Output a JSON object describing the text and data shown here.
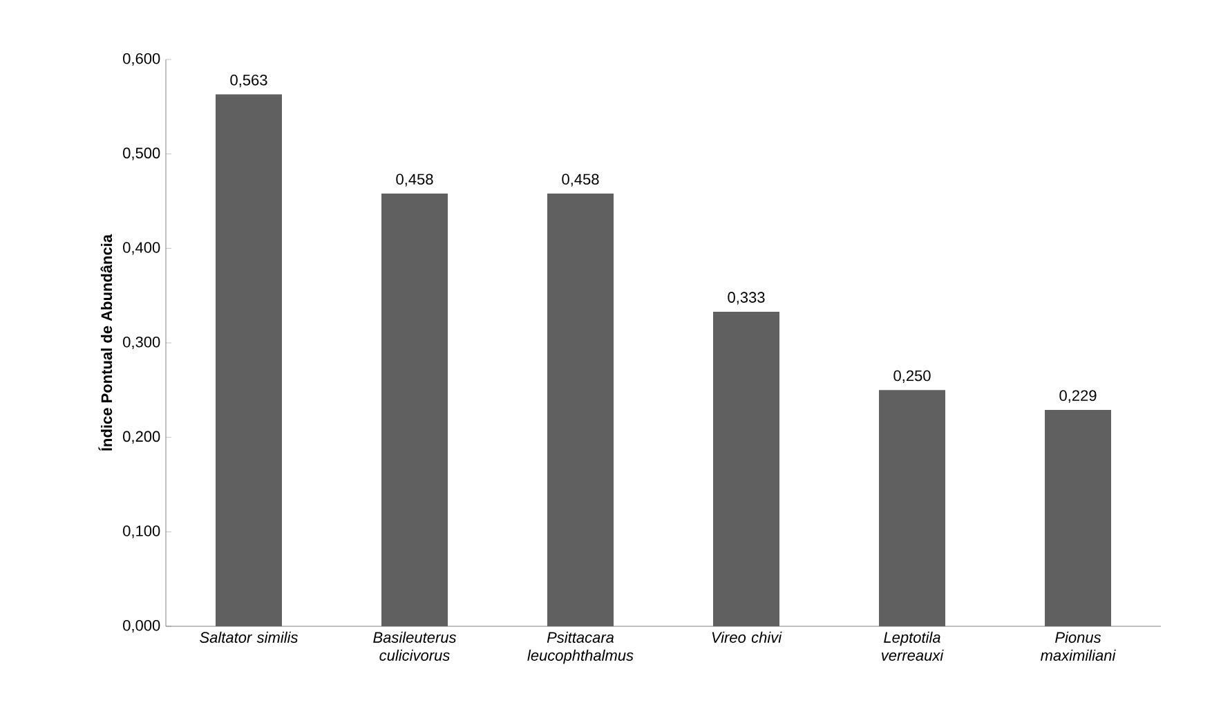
{
  "chart_data": {
    "type": "bar",
    "ylabel": "Índice Pontual de Abundância",
    "categories": [
      "Saltator similis",
      "Basileuterus culicivorus",
      "Psittacara leucophthalmus",
      "Vireo chivi",
      "Leptotila verreauxi",
      "Pionus maximiliani"
    ],
    "values": [
      0.563,
      0.458,
      0.458,
      0.333,
      0.25,
      0.229
    ],
    "value_labels": [
      "0,563",
      "0,458",
      "0,458",
      "0,333",
      "0,250",
      "0,229"
    ],
    "color": "#606060",
    "ylim": [
      0,
      0.6
    ],
    "yticks": [
      {
        "value": 0,
        "label": "0,000"
      },
      {
        "value": 0.1,
        "label": "0,100"
      },
      {
        "value": 0.2,
        "label": "0,200"
      },
      {
        "value": 0.3,
        "label": "0,300"
      },
      {
        "value": 0.4,
        "label": "0,400"
      },
      {
        "value": 0.5,
        "label": "0,500"
      },
      {
        "value": 0.6,
        "label": "0,600"
      }
    ],
    "grid": false
  }
}
